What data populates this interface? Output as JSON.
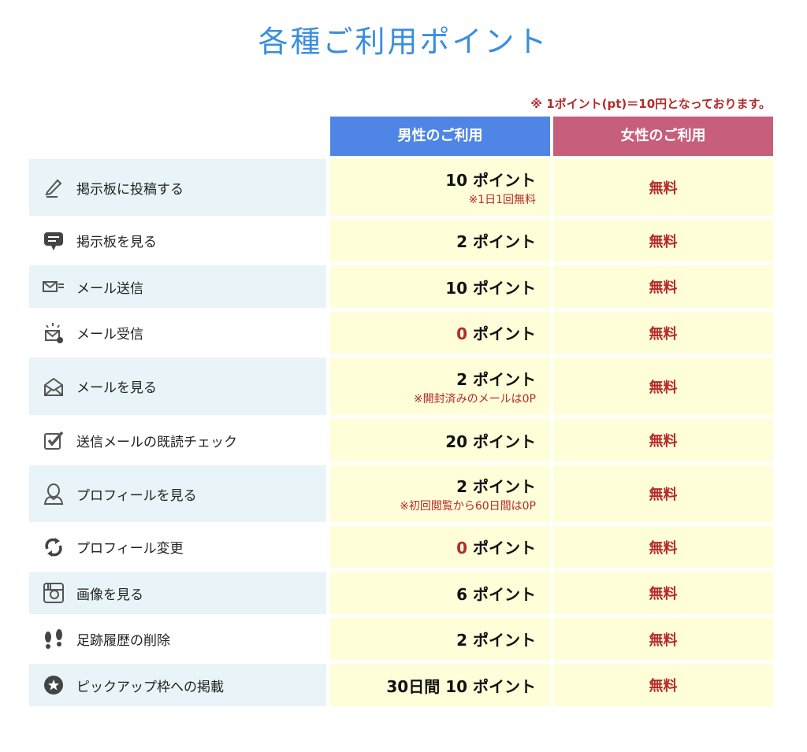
{
  "title": "各種ご利用ポイント",
  "note": "※ 1ポイント(pt)＝10円となっております。",
  "headers": {
    "male": "男性のご利用",
    "female": "女性のご利用"
  },
  "colors": {
    "title": "#3a8ee0",
    "male_header": "#4f86e6",
    "female_header": "#c75e7c",
    "accent_red": "#b52a2a",
    "cell_yellow": "#fefed9",
    "row_blue": "#e8f4f8"
  },
  "rows": [
    {
      "icon": "pencil-icon",
      "label": "掲示板に投稿する",
      "male": {
        "prefix": "",
        "num": "10",
        "unit": "ポイント",
        "note": "※1日1回無料"
      },
      "female": "無料"
    },
    {
      "icon": "speech-bubble-icon",
      "label": "掲示板を見る",
      "male": {
        "prefix": "",
        "num": "2",
        "unit": "ポイント",
        "note": ""
      },
      "female": "無料"
    },
    {
      "icon": "mail-send-icon",
      "label": "メール送信",
      "male": {
        "prefix": "",
        "num": "10",
        "unit": "ポイント",
        "note": ""
      },
      "female": "無料"
    },
    {
      "icon": "mail-receive-icon",
      "label": "メール受信",
      "male": {
        "prefix": "",
        "num": "0",
        "unit": "ポイント",
        "note": ""
      },
      "female": "無料"
    },
    {
      "icon": "open-envelope-icon",
      "label": "メールを見る",
      "male": {
        "prefix": "",
        "num": "2",
        "unit": "ポイント",
        "note": "※開封済みのメールは0P"
      },
      "female": "無料"
    },
    {
      "icon": "checkbox-icon",
      "label": "送信メールの既読チェック",
      "male": {
        "prefix": "",
        "num": "20",
        "unit": "ポイント",
        "note": ""
      },
      "female": "無料"
    },
    {
      "icon": "user-profile-icon",
      "label": "プロフィールを見る",
      "male": {
        "prefix": "",
        "num": "2",
        "unit": "ポイント",
        "note": "※初回閲覧から60日間は0P"
      },
      "female": "無料"
    },
    {
      "icon": "refresh-icon",
      "label": "プロフィール変更",
      "male": {
        "prefix": "",
        "num": "0",
        "unit": "ポイント",
        "note": ""
      },
      "female": "無料"
    },
    {
      "icon": "camera-icon",
      "label": "画像を見る",
      "male": {
        "prefix": "",
        "num": "6",
        "unit": "ポイント",
        "note": ""
      },
      "female": "無料"
    },
    {
      "icon": "footprints-icon",
      "label": "足跡履歴の削除",
      "male": {
        "prefix": "",
        "num": "2",
        "unit": "ポイント",
        "note": ""
      },
      "female": "無料"
    },
    {
      "icon": "star-icon",
      "label": "ピックアップ枠への掲載",
      "male": {
        "prefix": "30日間",
        "num": "10",
        "unit": "ポイント",
        "note": ""
      },
      "female": "無料"
    }
  ]
}
